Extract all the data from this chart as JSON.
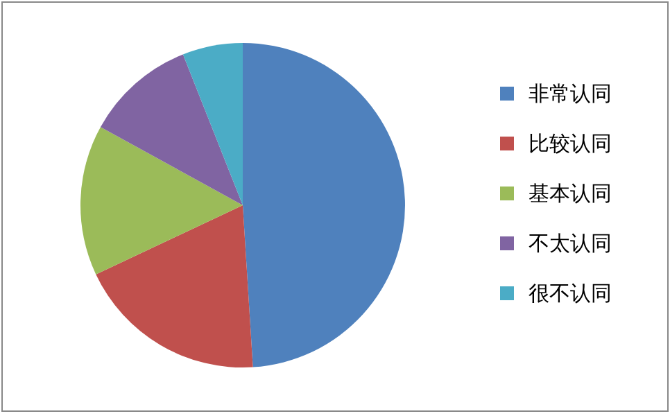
{
  "chart_data": {
    "type": "pie",
    "categories": [
      "非常认同",
      "比较认同",
      "基本认同",
      "不太认同",
      "很不认同"
    ],
    "values": [
      49,
      19,
      15,
      11,
      6
    ],
    "colors": [
      "#4f81bd",
      "#c0504d",
      "#9bbb59",
      "#8064a2",
      "#4bacc6"
    ],
    "legend": "right"
  }
}
